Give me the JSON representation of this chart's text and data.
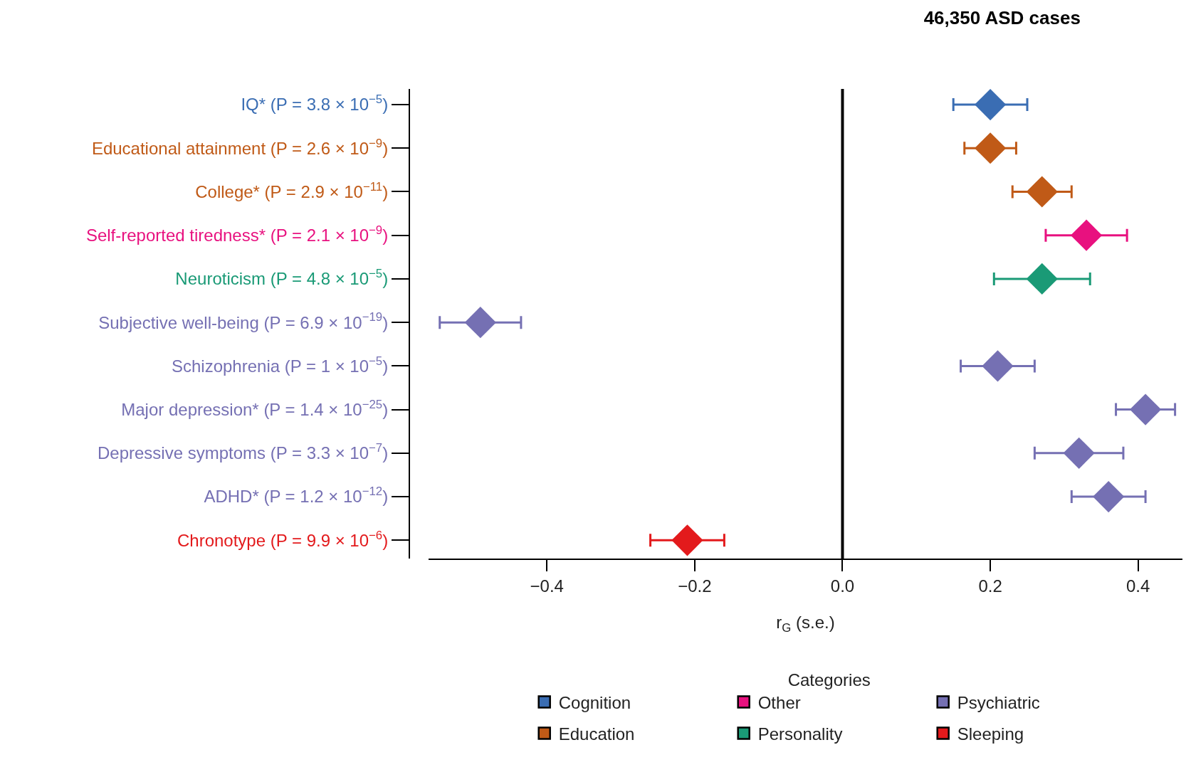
{
  "chart_data": {
    "type": "scatter",
    "title": "46,350 ASD cases",
    "xlabel": "r$_{G}$ (s.e.)",
    "orientation": "horizontal",
    "marker": "diamond",
    "legend": "bottom",
    "legend_title": "Categories",
    "categories": [
      "IQ* (P = 3.8 × 10$^{−5}$)",
      "Educational attainment (P = 2.6 × 10$^{−9}$)",
      "College* (P = 2.9 × 10$^{−11}$)",
      "Self-reported tiredness* (P = 2.1 × 10$^{−9}$)",
      "Neuroticism (P = 4.8 × 10$^{−5}$)",
      "Subjective well-being (P = 6.9 × 10$^{−19}$)",
      "Schizophrenia (P = 1 × 10$^{−5}$)",
      "Major depression* (P = 1.4 × 10$^{−25}$)",
      "Depressive symptoms (P = 3.3 × 10$^{−7}$)",
      "ADHD* (P = 1.2 × 10$^{−12}$)",
      "Chronotype (P = 9.9 × 10$^{−6}$)"
    ],
    "series": [
      {
        "name": "Cognition",
        "color": "#3a6db3",
        "values": [
          0.2,
          null,
          null,
          null,
          null,
          null,
          null,
          null,
          null,
          null,
          null
        ],
        "errors": [
          0.05,
          null,
          null,
          null,
          null,
          null,
          null,
          null,
          null,
          null,
          null
        ]
      },
      {
        "name": "Other",
        "color": "#e8117f",
        "values": [
          null,
          null,
          null,
          0.33,
          null,
          null,
          null,
          null,
          null,
          null,
          null
        ],
        "errors": [
          null,
          null,
          null,
          0.055,
          null,
          null,
          null,
          null,
          null,
          null,
          null
        ]
      },
      {
        "name": "Psychiatric",
        "color": "#7570b3",
        "values": [
          null,
          null,
          null,
          null,
          null,
          -0.49,
          0.21,
          0.41,
          0.32,
          0.36,
          null
        ],
        "errors": [
          null,
          null,
          null,
          null,
          null,
          0.055,
          0.05,
          0.04,
          0.06,
          0.05,
          null
        ]
      },
      {
        "name": "Education",
        "color": "#c05a17",
        "values": [
          null,
          0.2,
          0.27,
          null,
          null,
          null,
          null,
          null,
          null,
          null,
          null
        ],
        "errors": [
          null,
          0.035,
          0.04,
          null,
          null,
          null,
          null,
          null,
          null,
          null,
          null
        ]
      },
      {
        "name": "Personality",
        "color": "#1a9a76",
        "values": [
          null,
          null,
          null,
          null,
          0.27,
          null,
          null,
          null,
          null,
          null,
          null
        ],
        "errors": [
          null,
          null,
          null,
          null,
          0.065,
          null,
          null,
          null,
          null,
          null,
          null
        ]
      },
      {
        "name": "Sleeping",
        "color": "#e31a1c",
        "values": [
          null,
          null,
          null,
          null,
          null,
          null,
          null,
          null,
          null,
          null,
          -0.21
        ],
        "errors": [
          null,
          null,
          null,
          null,
          null,
          null,
          null,
          null,
          null,
          null,
          0.05
        ]
      }
    ],
    "xlim": [
      -0.56,
      0.46
    ],
    "xticks": [
      {
        "value": -0.4,
        "label": "−0.4"
      },
      {
        "value": -0.2,
        "label": "−0.2"
      },
      {
        "value": 0,
        "label": "0.0"
      },
      {
        "value": 0.2,
        "label": "0.2"
      },
      {
        "value": 0.4,
        "label": "0.4"
      }
    ],
    "ref_lines": [
      {
        "axis": "x",
        "value": 0,
        "color": "#000000"
      }
    ]
  }
}
